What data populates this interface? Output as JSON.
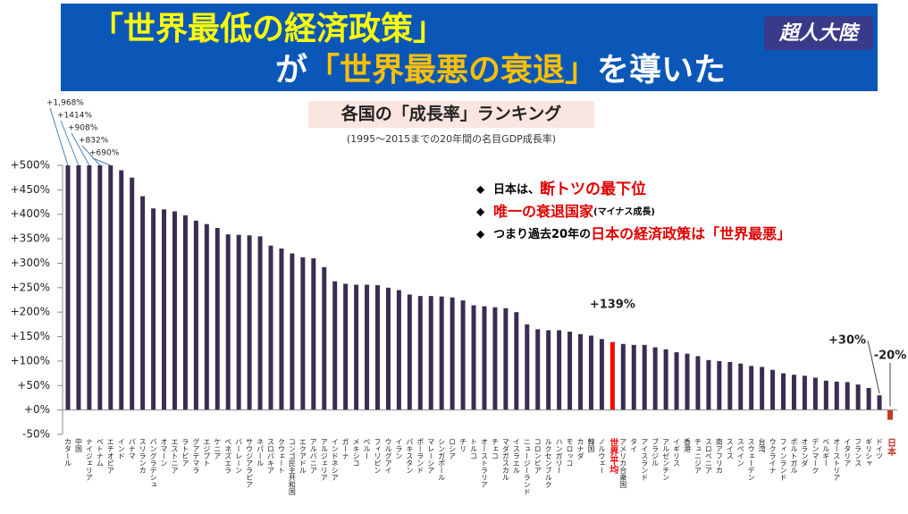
{
  "header": {
    "line1": "「世界最低の経済政策」",
    "line2": [
      {
        "text": "が",
        "color": "#ffffff"
      },
      {
        "text": "「世界最悪の衰退」",
        "color": "#ffc000"
      },
      {
        "text": "を導いた",
        "color": "#ffffff"
      }
    ],
    "logo": "超人大陸"
  },
  "bullets": [
    [
      {
        "text": "日本は、",
        "color": "#000000",
        "size": 13
      },
      {
        "text": "断トツの最下位",
        "color": "#e00000",
        "size": 17
      }
    ],
    [
      {
        "text": "唯一の衰退国家",
        "color": "#e00000",
        "size": 16
      },
      {
        "text": "(マイナス成長)",
        "color": "#000000",
        "size": 10
      }
    ],
    [
      {
        "text": "つまり過去20年の",
        "color": "#000000",
        "size": 13
      },
      {
        "text": "日本の経済政策は「世界最悪」",
        "color": "#e00000",
        "size": 16
      }
    ]
  ],
  "chart_data": {
    "type": "bar",
    "title": "各国の「成長率」ランキング",
    "subtitle": "(1995～2015までの20年間の名目GDP成長率)",
    "categories": [
      "カタール",
      "中国",
      "ナイジェリア",
      "ベトナム",
      "エチオピア",
      "インド",
      "パナマ",
      "スリランカ",
      "バングラデシュ",
      "オマーン",
      "エストニア",
      "ラトビア",
      "グアテマラ",
      "エジプト",
      "ケニア",
      "ベネズエラ",
      "バーレーン",
      "サウジアラビア",
      "ネパール",
      "スロバキア",
      "クウェート",
      "コンゴ民主共和国",
      "エクアドル",
      "アルバニア",
      "アルジェリア",
      "インドネシア",
      "ガーナ",
      "メキシコ",
      "ペルー",
      "フィリピン",
      "ウルグアイ",
      "イラン",
      "パキスタン",
      "ポーランド",
      "マレーシア",
      "シンガポール",
      "ロシア",
      "チリ",
      "トルコ",
      "オーストラリア",
      "チェコ",
      "マダガスカル",
      "イスラエル",
      "ニュージーランド",
      "コロンビア",
      "ルクセンブルク",
      "ハンガリー",
      "モロッコ",
      "カナダ",
      "韓国",
      "ノルウェー",
      "世界平均",
      "アメリカ合衆国",
      "タイ",
      "アイスランド",
      "ブラジル",
      "アルゼンチン",
      "イギリス",
      "香港",
      "チュニジア",
      "スロベニア",
      "南アフリカ",
      "スイス",
      "スペイン",
      "スウェーデン",
      "台湾",
      "ウクライナ",
      "フィンランド",
      "ポルトガル",
      "オランダ",
      "デンマーク",
      "ベルギー",
      "オーストリア",
      "イタリア",
      "フランス",
      "ギリシャ",
      "ドイツ",
      "日本"
    ],
    "values": [
      1968,
      1414,
      908,
      832,
      690,
      490,
      475,
      437,
      412,
      410,
      406,
      398,
      387,
      380,
      372,
      359,
      358,
      357,
      355,
      336,
      330,
      320,
      312,
      310,
      292,
      263,
      258,
      256,
      256,
      255,
      250,
      245,
      236,
      233,
      233,
      232,
      230,
      224,
      214,
      212,
      210,
      208,
      200,
      175,
      165,
      163,
      163,
      160,
      155,
      152,
      145,
      139,
      135,
      133,
      133,
      128,
      124,
      118,
      115,
      110,
      102,
      100,
      98,
      95,
      90,
      88,
      82,
      75,
      72,
      70,
      66,
      60,
      58,
      57,
      52,
      45,
      30,
      -20
    ],
    "value_labels": [
      "+1,968%",
      "+1414%",
      "+908%",
      "+832%",
      "+690%",
      null,
      null,
      null,
      null,
      null,
      null,
      null,
      null,
      null,
      null,
      null,
      null,
      null,
      null,
      null,
      null,
      null,
      null,
      null,
      null,
      null,
      null,
      null,
      null,
      null,
      null,
      null,
      null,
      null,
      null,
      null,
      null,
      null,
      null,
      null,
      null,
      null,
      null,
      null,
      null,
      null,
      null,
      null,
      null,
      null,
      null,
      "+139%",
      null,
      null,
      null,
      null,
      null,
      null,
      null,
      null,
      null,
      null,
      null,
      null,
      null,
      null,
      null,
      null,
      null,
      null,
      null,
      null,
      null,
      null,
      null,
      null,
      "+30%",
      "-20%"
    ],
    "color": "#3b2c52",
    "bar_colors": [
      "#3b2c52",
      "#3b2c52",
      "#3b2c52",
      "#3b2c52",
      "#3b2c52",
      "#3b2c52",
      "#3b2c52",
      "#3b2c52",
      "#3b2c52",
      "#3b2c52",
      "#3b2c52",
      "#3b2c52",
      "#3b2c52",
      "#3b2c52",
      "#3b2c52",
      "#3b2c52",
      "#3b2c52",
      "#3b2c52",
      "#3b2c52",
      "#3b2c52",
      "#3b2c52",
      "#3b2c52",
      "#3b2c52",
      "#3b2c52",
      "#3b2c52",
      "#3b2c52",
      "#3b2c52",
      "#3b2c52",
      "#3b2c52",
      "#3b2c52",
      "#3b2c52",
      "#3b2c52",
      "#3b2c52",
      "#3b2c52",
      "#3b2c52",
      "#3b2c52",
      "#3b2c52",
      "#3b2c52",
      "#3b2c52",
      "#3b2c52",
      "#3b2c52",
      "#3b2c52",
      "#3b2c52",
      "#3b2c52",
      "#3b2c52",
      "#3b2c52",
      "#3b2c52",
      "#3b2c52",
      "#3b2c52",
      "#3b2c52",
      "#3b2c52",
      "#ff0000",
      "#3b2c52",
      "#3b2c52",
      "#3b2c52",
      "#3b2c52",
      "#3b2c52",
      "#3b2c52",
      "#3b2c52",
      "#3b2c52",
      "#3b2c52",
      "#3b2c52",
      "#3b2c52",
      "#3b2c52",
      "#3b2c52",
      "#3b2c52",
      "#3b2c52",
      "#3b2c52",
      "#3b2c52",
      "#3b2c52",
      "#3b2c52",
      "#3b2c52",
      "#3b2c52",
      "#3b2c52",
      "#3b2c52",
      "#3b2c52",
      "#3b2c52",
      "#c0392b"
    ],
    "ylim": [
      -50,
      500
    ],
    "yticks": [
      {
        "value": 500,
        "label": "+500%"
      },
      {
        "value": 450,
        "label": "+450%"
      },
      {
        "value": 400,
        "label": "+400%"
      },
      {
        "value": 350,
        "label": "+350%"
      },
      {
        "value": 300,
        "label": "+300%"
      },
      {
        "value": 250,
        "label": "+250%"
      },
      {
        "value": 200,
        "label": "+200%"
      },
      {
        "value": 150,
        "label": "+150%"
      },
      {
        "value": 100,
        "label": "+100%"
      },
      {
        "value": 50,
        "label": "+50%"
      },
      {
        "value": 0,
        "label": "+0%"
      },
      {
        "value": -50,
        "label": "-50%"
      }
    ]
  }
}
